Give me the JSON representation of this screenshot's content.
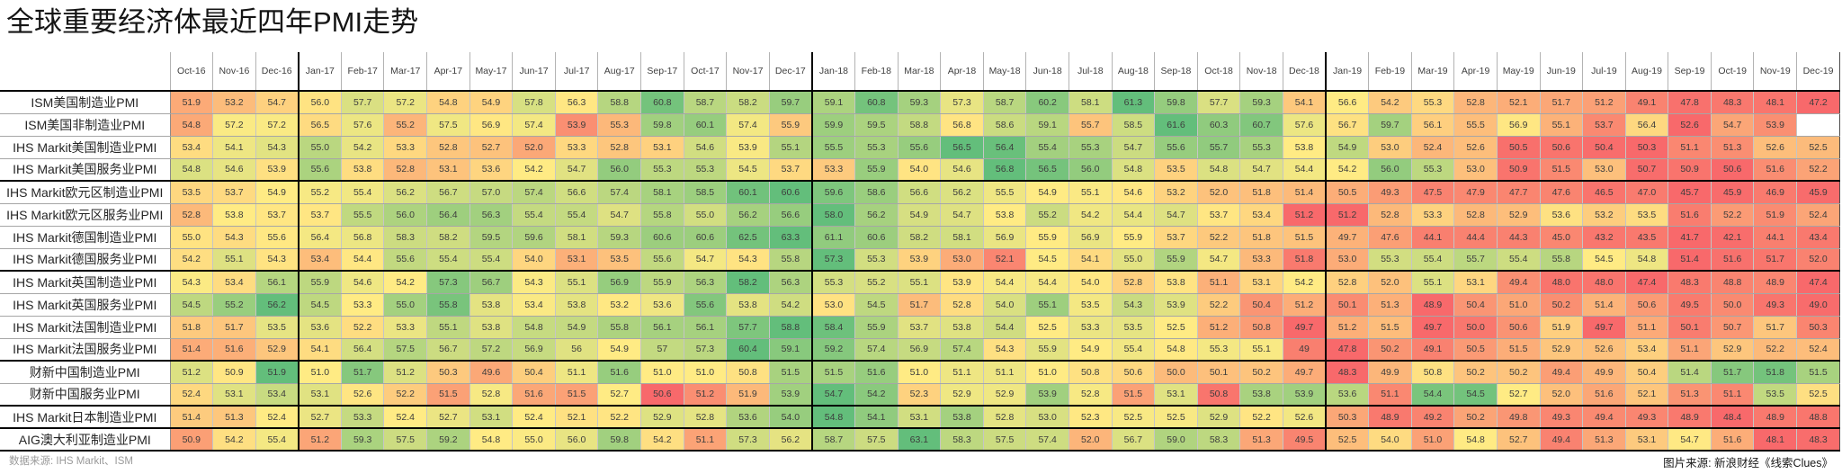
{
  "title": "全球重要经济体最近四年PMI走势",
  "footer": {
    "source": "数据来源: IHS Markit、ISM",
    "credit": "图片来源: 新浪财经《线索Clues》"
  },
  "chart_data": {
    "type": "heatmap",
    "title": "全球重要经济体最近四年PMI走势",
    "columns": [
      "Oct-16",
      "Nov-16",
      "Dec-16",
      "Jan-17",
      "Feb-17",
      "Mar-17",
      "Apr-17",
      "May-17",
      "Jun-17",
      "Jul-17",
      "Aug-17",
      "Sep-17",
      "Oct-17",
      "Nov-17",
      "Dec-17",
      "Jan-18",
      "Feb-18",
      "Mar-18",
      "Apr-18",
      "May-18",
      "Jun-18",
      "Jul-18",
      "Aug-18",
      "Sep-18",
      "Oct-18",
      "Nov-18",
      "Dec-18",
      "Jan-19",
      "Feb-19",
      "Mar-19",
      "Apr-19",
      "May-19",
      "Jun-19",
      "Jul-19",
      "Aug-19",
      "Sep-19",
      "Oct-19",
      "Nov-19",
      "Dec-19"
    ],
    "rows": [
      {
        "label": "ISM美国制造业PMI",
        "values": [
          "51.9",
          "53.2",
          "54.7",
          "56.0",
          "57.7",
          "57.2",
          "54.8",
          "54.9",
          "57.8",
          "56.3",
          "58.8",
          "60.8",
          "58.7",
          "58.2",
          "59.7",
          "59.1",
          "60.8",
          "59.3",
          "57.3",
          "58.7",
          "60.2",
          "58.1",
          "61.3",
          "59.8",
          "57.7",
          "59.3",
          "54.1",
          "56.6",
          "54.2",
          "55.3",
          "52.8",
          "52.1",
          "51.7",
          "51.2",
          "49.1",
          "47.8",
          "48.3",
          "48.1",
          "47.2"
        ]
      },
      {
        "label": "ISM美国非制造业PMI",
        "values": [
          "54.8",
          "57.2",
          "57.2",
          "56.5",
          "57.6",
          "55.2",
          "57.5",
          "56.9",
          "57.4",
          "53.9",
          "55.3",
          "59.8",
          "60.1",
          "57.4",
          "55.9",
          "59.9",
          "59.5",
          "58.8",
          "56.8",
          "58.6",
          "59.1",
          "55.7",
          "58.5",
          "61.6",
          "60.3",
          "60.7",
          "57.6",
          "56.7",
          "59.7",
          "56.1",
          "55.5",
          "56.9",
          "55.1",
          "53.7",
          "56.4",
          "52.6",
          "54.7",
          "53.9",
          null
        ]
      },
      {
        "label": "IHS Markit美国制造业PMI",
        "values": [
          "53.4",
          "54.1",
          "54.3",
          "55.0",
          "54.2",
          "53.3",
          "52.8",
          "52.7",
          "52.0",
          "53.3",
          "52.8",
          "53.1",
          "54.6",
          "53.9",
          "55.1",
          "55.5",
          "55.3",
          "55.6",
          "56.5",
          "56.4",
          "55.4",
          "55.3",
          "54.7",
          "55.6",
          "55.7",
          "55.3",
          "53.8",
          "54.9",
          "53.0",
          "52.4",
          "52.6",
          "50.5",
          "50.6",
          "50.4",
          "50.3",
          "51.1",
          "51.3",
          "52.6",
          "52.5"
        ]
      },
      {
        "label": "IHS Markit美国服务业PMI",
        "values": [
          "54.8",
          "54.6",
          "53.9",
          "55.6",
          "53.8",
          "52.8",
          "53.1",
          "53.6",
          "54.2",
          "54.7",
          "56.0",
          "55.3",
          "55.3",
          "54.5",
          "53.7",
          "53.3",
          "55.9",
          "54.0",
          "54.6",
          "56.8",
          "56.5",
          "56.0",
          "54.8",
          "53.5",
          "54.8",
          "54.7",
          "54.4",
          "54.2",
          "56.0",
          "55.3",
          "53.0",
          "50.9",
          "51.5",
          "53.0",
          "50.7",
          "50.9",
          "50.6",
          "51.6",
          "52.2"
        ]
      },
      {
        "label": "IHS Markit欧元区制造业PMI",
        "values": [
          "53.5",
          "53.7",
          "54.9",
          "55.2",
          "55.4",
          "56.2",
          "56.7",
          "57.0",
          "57.4",
          "56.6",
          "57.4",
          "58.1",
          "58.5",
          "60.1",
          "60.6",
          "59.6",
          "58.6",
          "56.6",
          "56.2",
          "55.5",
          "54.9",
          "55.1",
          "54.6",
          "53.2",
          "52.0",
          "51.8",
          "51.4",
          "50.5",
          "49.3",
          "47.5",
          "47.9",
          "47.7",
          "47.6",
          "46.5",
          "47.0",
          "45.7",
          "45.9",
          "46.9",
          "45.9"
        ]
      },
      {
        "label": "IHS Markit欧元区服务业PMI",
        "values": [
          "52.8",
          "53.8",
          "53.7",
          "53.7",
          "55.5",
          "56.0",
          "56.4",
          "56.3",
          "55.4",
          "55.4",
          "54.7",
          "55.8",
          "55.0",
          "56.2",
          "56.6",
          "58.0",
          "56.2",
          "54.9",
          "54.7",
          "53.8",
          "55.2",
          "54.2",
          "54.4",
          "54.7",
          "53.7",
          "53.4",
          "51.2",
          "51.2",
          "52.8",
          "53.3",
          "52.8",
          "52.9",
          "53.6",
          "53.2",
          "53.5",
          "51.6",
          "52.2",
          "51.9",
          "52.4"
        ]
      },
      {
        "label": "IHS Markit德国制造业PMI",
        "values": [
          "55.0",
          "54.3",
          "55.6",
          "56.4",
          "56.8",
          "58.3",
          "58.2",
          "59.5",
          "59.6",
          "58.1",
          "59.3",
          "60.6",
          "60.6",
          "62.5",
          "63.3",
          "61.1",
          "60.6",
          "58.2",
          "58.1",
          "56.9",
          "55.9",
          "56.9",
          "55.9",
          "53.7",
          "52.2",
          "51.8",
          "51.5",
          "49.7",
          "47.6",
          "44.1",
          "44.4",
          "44.3",
          "45.0",
          "43.2",
          "43.5",
          "41.7",
          "42.1",
          "44.1",
          "43.4"
        ]
      },
      {
        "label": "IHS Markit德国服务业PMI",
        "values": [
          "54.2",
          "55.1",
          "54.3",
          "53.4",
          "54.4",
          "55.6",
          "55.4",
          "55.4",
          "54.0",
          "53.1",
          "53.5",
          "55.6",
          "54.7",
          "54.3",
          "55.8",
          "57.3",
          "55.3",
          "53.9",
          "53.0",
          "52.1",
          "54.5",
          "54.1",
          "55.0",
          "55.9",
          "54.7",
          "53.3",
          "51.8",
          "53.0",
          "55.3",
          "55.4",
          "55.7",
          "55.4",
          "55.8",
          "54.5",
          "54.8",
          "51.4",
          "51.6",
          "51.7",
          "52.0"
        ]
      },
      {
        "label": "IHS Markit英国制造业PMI",
        "values": [
          "54.3",
          "53.4",
          "56.1",
          "55.9",
          "54.6",
          "54.2",
          "57.3",
          "56.7",
          "54.3",
          "55.1",
          "56.9",
          "55.9",
          "56.3",
          "58.2",
          "56.3",
          "55.3",
          "55.2",
          "55.1",
          "53.9",
          "54.4",
          "54.4",
          "54.0",
          "52.8",
          "53.8",
          "51.1",
          "53.1",
          "54.2",
          "52.8",
          "52.0",
          "55.1",
          "53.1",
          "49.4",
          "48.0",
          "48.0",
          "47.4",
          "48.3",
          "48.8",
          "48.9",
          "47.4"
        ]
      },
      {
        "label": "IHS Markit英国服务业PMI",
        "values": [
          "54.5",
          "55.2",
          "56.2",
          "54.5",
          "53.3",
          "55.0",
          "55.8",
          "53.8",
          "53.4",
          "53.8",
          "53.2",
          "53.6",
          "55.6",
          "53.8",
          "54.2",
          "53.0",
          "54.5",
          "51.7",
          "52.8",
          "54.0",
          "55.1",
          "53.5",
          "54.3",
          "53.9",
          "52.2",
          "50.4",
          "51.2",
          "50.1",
          "51.3",
          "48.9",
          "50.4",
          "51.0",
          "50.2",
          "51.4",
          "50.6",
          "49.5",
          "50.0",
          "49.3",
          "49.0"
        ]
      },
      {
        "label": "IHS Markit法国制造业PMI",
        "values": [
          "51.8",
          "51.7",
          "53.5",
          "53.6",
          "52.2",
          "53.3",
          "55.1",
          "53.8",
          "54.8",
          "54.9",
          "55.8",
          "56.1",
          "56.1",
          "57.7",
          "58.8",
          "58.4",
          "55.9",
          "53.7",
          "53.8",
          "54.4",
          "52.5",
          "53.3",
          "53.5",
          "52.5",
          "51.2",
          "50.8",
          "49.7",
          "51.2",
          "51.5",
          "49.7",
          "50.0",
          "50.6",
          "51.9",
          "49.7",
          "51.1",
          "50.1",
          "50.7",
          "51.7",
          "50.3"
        ]
      },
      {
        "label": "IHS Markit法国服务业PMI",
        "values": [
          "51.4",
          "51.6",
          "52.9",
          "54.1",
          "56.4",
          "57.5",
          "56.7",
          "57.2",
          "56.9",
          "56",
          "54.9",
          "57",
          "57.3",
          "60.4",
          "59.1",
          "59.2",
          "57.4",
          "56.9",
          "57.4",
          "54.3",
          "55.9",
          "54.9",
          "55.4",
          "54.8",
          "55.3",
          "55.1",
          "49",
          "47.8",
          "50.2",
          "49.1",
          "50.5",
          "51.5",
          "52.9",
          "52.6",
          "53.4",
          "51.1",
          "52.9",
          "52.2",
          "52.4"
        ]
      },
      {
        "label": "财新中国制造业PMI",
        "values": [
          "51.2",
          "50.9",
          "51.9",
          "51.0",
          "51.7",
          "51.2",
          "50.3",
          "49.6",
          "50.4",
          "51.1",
          "51.6",
          "51.0",
          "51.0",
          "50.8",
          "51.5",
          "51.5",
          "51.6",
          "51.0",
          "51.1",
          "51.1",
          "51.0",
          "50.8",
          "50.6",
          "50.0",
          "50.1",
          "50.2",
          "49.7",
          "48.3",
          "49.9",
          "50.8",
          "50.2",
          "50.2",
          "49.4",
          "49.9",
          "50.4",
          "51.4",
          "51.7",
          "51.8",
          "51.5"
        ]
      },
      {
        "label": "财新中国服务业PMI",
        "values": [
          "52.4",
          "53.1",
          "53.4",
          "53.1",
          "52.6",
          "52.2",
          "51.5",
          "52.8",
          "51.6",
          "51.5",
          "52.7",
          "50.6",
          "51.2",
          "51.9",
          "53.9",
          "54.7",
          "54.2",
          "52.3",
          "52.9",
          "52.9",
          "53.9",
          "52.8",
          "51.5",
          "53.1",
          "50.8",
          "53.8",
          "53.9",
          "53.6",
          "51.1",
          "54.4",
          "54.5",
          "52.7",
          "52.0",
          "51.6",
          "52.1",
          "51.3",
          "51.1",
          "53.5",
          "52.5"
        ]
      },
      {
        "label": "IHS Markit日本制造业PMI",
        "values": [
          "51.4",
          "51.3",
          "52.4",
          "52.7",
          "53.3",
          "52.4",
          "52.7",
          "53.1",
          "52.4",
          "52.1",
          "52.2",
          "52.9",
          "52.8",
          "53.6",
          "54.0",
          "54.8",
          "54.1",
          "53.1",
          "53.8",
          "52.8",
          "53.0",
          "52.3",
          "52.5",
          "52.5",
          "52.9",
          "52.2",
          "52.6",
          "50.3",
          "48.9",
          "49.2",
          "50.2",
          "49.8",
          "49.3",
          "49.4",
          "49.3",
          "48.9",
          "48.4",
          "48.9",
          "48.8"
        ]
      },
      {
        "label": "AIG澳大利亚制造业PMI",
        "values": [
          "50.9",
          "54.2",
          "55.4",
          "51.2",
          "59.3",
          "57.5",
          "59.2",
          "54.8",
          "55.0",
          "56.0",
          "59.8",
          "54.2",
          "51.1",
          "57.3",
          "56.2",
          "58.7",
          "57.5",
          "63.1",
          "58.3",
          "57.5",
          "57.4",
          "52.0",
          "56.7",
          "59.0",
          "58.3",
          "51.3",
          "49.5",
          "52.5",
          "54.0",
          "51.0",
          "54.8",
          "52.7",
          "49.4",
          "51.3",
          "53.1",
          "54.7",
          "51.6",
          "48.1",
          "48.3"
        ]
      }
    ],
    "color_scale": {
      "mode": "3-color scale applied per row, midpoint at row median",
      "min_color": "#F8696B",
      "mid_color": "#FFEB84",
      "max_color": "#63BE7B",
      "missing_color": "#FFFFFF"
    },
    "year_start_columns": [
      3,
      15,
      27
    ],
    "group_end_rows": [
      3,
      7,
      11,
      13,
      14,
      15
    ],
    "legend_position": "none",
    "grid": true
  }
}
